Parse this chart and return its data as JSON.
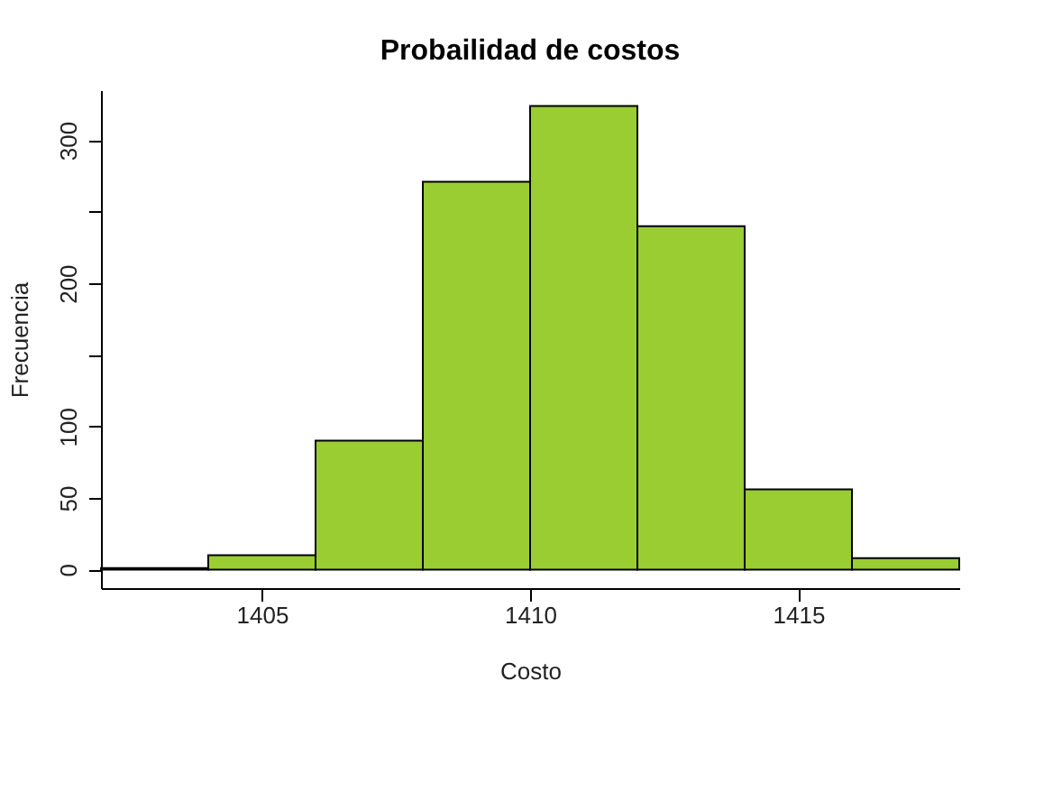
{
  "chart_data": {
    "type": "histogram",
    "title": "Probailidad de costos",
    "xlabel": "Costo",
    "ylabel": "Frecuencia",
    "bins": [
      1402,
      1404,
      1406,
      1408,
      1410,
      1412,
      1414,
      1416,
      1418
    ],
    "values": [
      1,
      10,
      90,
      271,
      324,
      240,
      56,
      8
    ],
    "color": "#9acd32",
    "xlim": [
      1402,
      1418
    ],
    "xticks": [
      1405,
      1410,
      1415
    ],
    "ylim": [
      -13,
      335
    ],
    "yticks": [
      0,
      50,
      100,
      {
        "value": 150,
        "label": null
      },
      200,
      {
        "value": 250,
        "label": null
      },
      300
    ],
    "grid": false
  }
}
